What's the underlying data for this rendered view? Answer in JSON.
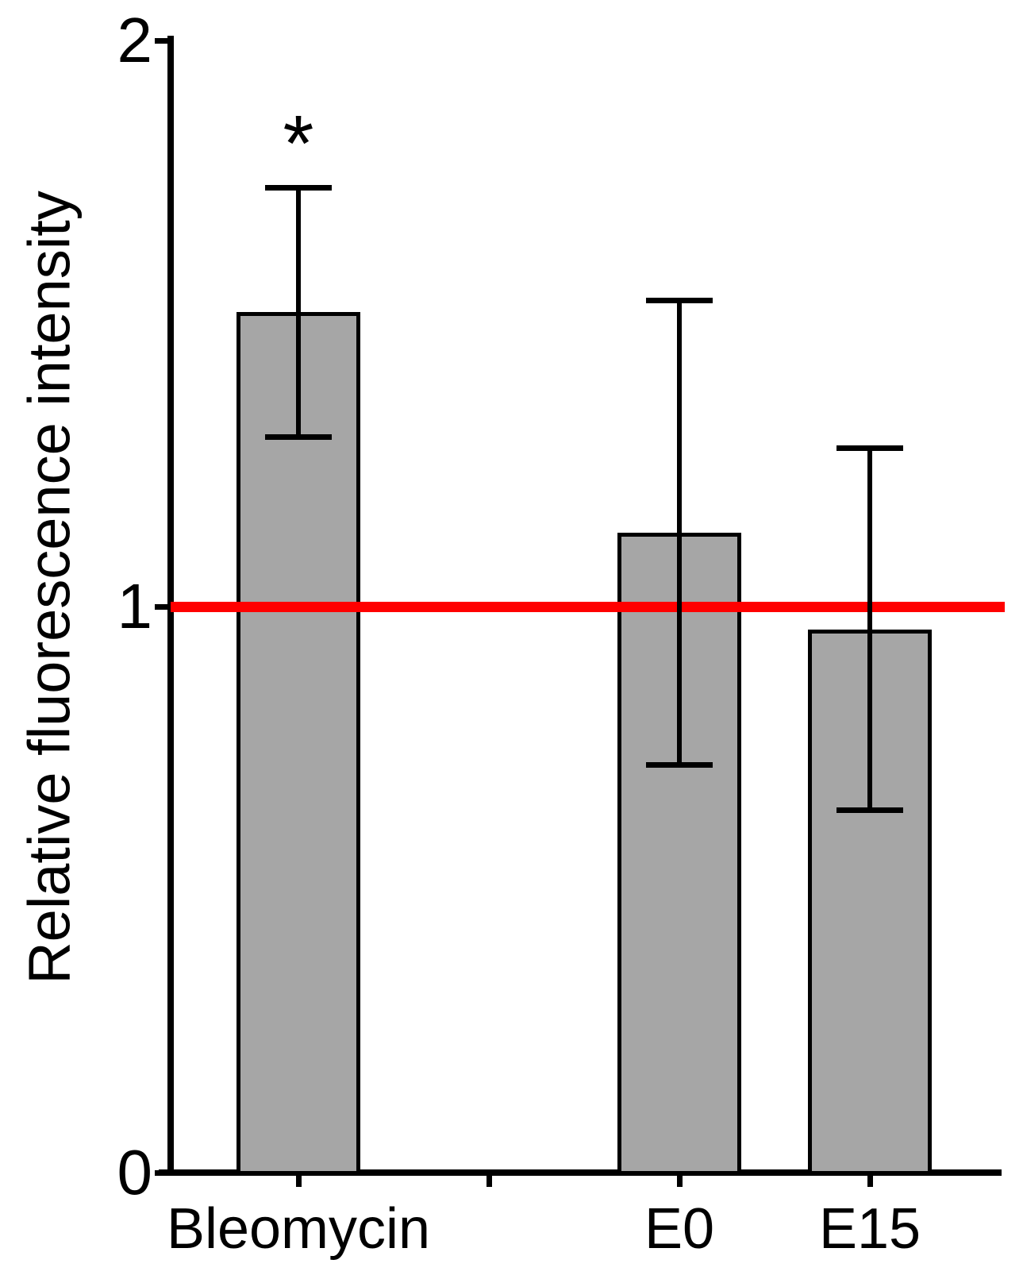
{
  "figure": {
    "background": "#ffffff",
    "text_color": "#000000"
  },
  "chart_data": {
    "type": "bar",
    "title": "",
    "xlabel": "",
    "ylabel": "Relative fluorescence intensity",
    "ylim": [
      0,
      2
    ],
    "yticks": [
      {
        "value": 0,
        "label": "0"
      },
      {
        "value": 1,
        "label": "1"
      },
      {
        "value": 2,
        "label": "2"
      }
    ],
    "grid": false,
    "legend": "none",
    "categories": [
      "Bleomycin",
      "",
      "E0",
      "E15"
    ],
    "values": [
      1.52,
      null,
      1.13,
      0.96
    ],
    "errors": [
      0.22,
      null,
      0.41,
      0.32
    ],
    "significance": [
      "*",
      "",
      "",
      ""
    ],
    "reference_line": {
      "y": 1,
      "color": "#ff0000"
    },
    "bar_fill_color": "#a6a6a6",
    "bar_border_color": "#000000",
    "error_bar_color": "#000000",
    "axis_color": "#000000"
  }
}
